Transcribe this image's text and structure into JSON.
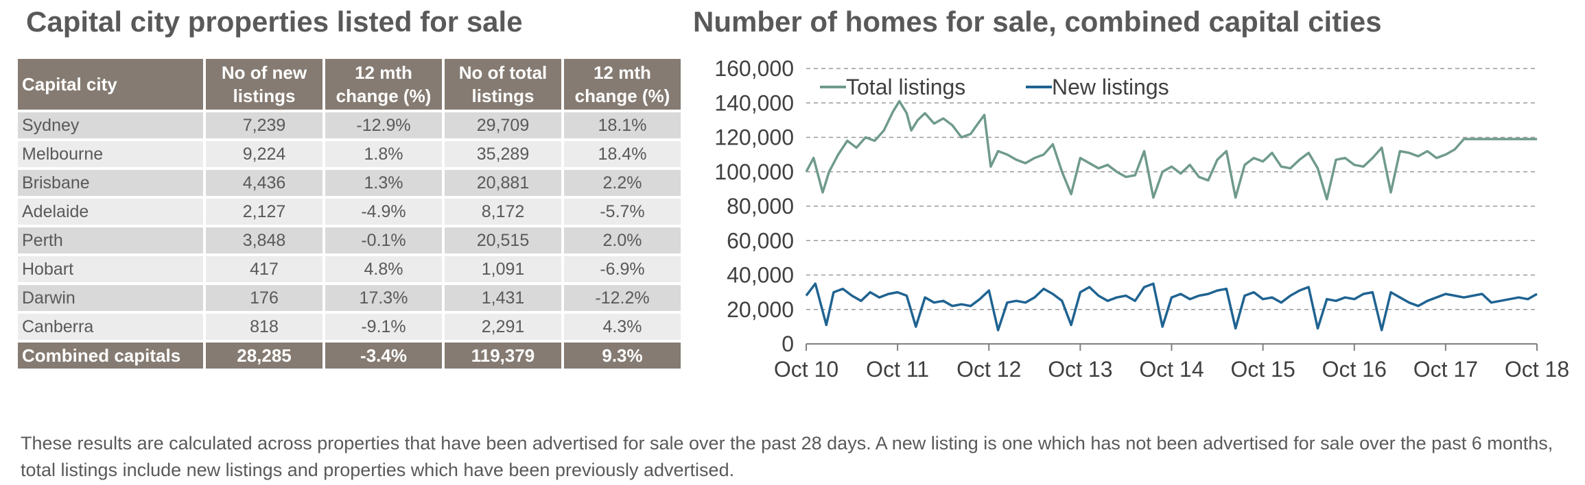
{
  "left_title": "Capital city properties listed for sale",
  "right_title": "Number of homes for sale, combined capital cities",
  "table": {
    "headers": [
      "Capital city",
      "No of new listings",
      "12 mth change (%)",
      "No of total listings",
      "12 mth change (%)"
    ],
    "rows": [
      {
        "city": "Sydney",
        "new": "7,239",
        "new_change": "-12.9%",
        "total": "29,709",
        "total_change": "18.1%"
      },
      {
        "city": "Melbourne",
        "new": "9,224",
        "new_change": "1.8%",
        "total": "35,289",
        "total_change": "18.4%"
      },
      {
        "city": "Brisbane",
        "new": "4,436",
        "new_change": "1.3%",
        "total": "20,881",
        "total_change": "2.2%"
      },
      {
        "city": "Adelaide",
        "new": "2,127",
        "new_change": "-4.9%",
        "total": "8,172",
        "total_change": "-5.7%"
      },
      {
        "city": "Perth",
        "new": "3,848",
        "new_change": "-0.1%",
        "total": "20,515",
        "total_change": "2.0%"
      },
      {
        "city": "Hobart",
        "new": "417",
        "new_change": "4.8%",
        "total": "1,091",
        "total_change": "-6.9%"
      },
      {
        "city": "Darwin",
        "new": "176",
        "new_change": "17.3%",
        "total": "1,431",
        "total_change": "-12.2%"
      },
      {
        "city": "Canberra",
        "new": "818",
        "new_change": "-9.1%",
        "total": "2,291",
        "total_change": "4.3%"
      }
    ],
    "total_row": {
      "city": "Combined capitals",
      "new": "28,285",
      "new_change": "-3.4%",
      "total": "119,379",
      "total_change": "9.3%"
    }
  },
  "chart_data": {
    "type": "line",
    "title": "Number of homes for sale, combined capital cities",
    "x_tick_labels": [
      "Oct 10",
      "Oct 11",
      "Oct 12",
      "Oct 13",
      "Oct 14",
      "Oct 15",
      "Oct 16",
      "Oct 17",
      "Oct 18"
    ],
    "y_tick_labels": [
      "0",
      "20,000",
      "40,000",
      "60,000",
      "80,000",
      "100,000",
      "120,000",
      "140,000",
      "160,000"
    ],
    "ylim": [
      0,
      160000
    ],
    "xlim": [
      0,
      8
    ],
    "grid": "horizontal dashed",
    "legend_position": "top-left",
    "series": [
      {
        "name": "Total listings",
        "color": "#6f9a8d",
        "x": [
          0,
          0.08,
          0.18,
          0.25,
          0.35,
          0.45,
          0.55,
          0.65,
          0.75,
          0.85,
          0.95,
          1.02,
          1.1,
          1.15,
          1.22,
          1.3,
          1.4,
          1.5,
          1.6,
          1.7,
          1.8,
          1.88,
          1.95,
          2.02,
          2.1,
          2.2,
          2.3,
          2.4,
          2.5,
          2.6,
          2.7,
          2.8,
          2.9,
          3.0,
          3.1,
          3.2,
          3.3,
          3.4,
          3.5,
          3.6,
          3.7,
          3.8,
          3.9,
          4.0,
          4.1,
          4.2,
          4.3,
          4.4,
          4.5,
          4.6,
          4.7,
          4.8,
          4.9,
          5.0,
          5.1,
          5.2,
          5.3,
          5.4,
          5.5,
          5.6,
          5.7,
          5.8,
          5.9,
          6.0,
          6.1,
          6.2,
          6.3,
          6.4,
          6.5,
          6.6,
          6.7,
          6.8,
          6.9,
          7.0,
          7.1,
          7.2,
          7.3,
          7.4,
          7.5,
          7.6,
          7.7,
          7.8,
          7.9,
          8.0
        ],
        "values": [
          100000,
          108000,
          88000,
          100000,
          110000,
          118000,
          114000,
          120000,
          118000,
          124000,
          135000,
          141000,
          134000,
          124000,
          130000,
          134000,
          128000,
          131000,
          127000,
          120000,
          122000,
          128000,
          133000,
          103000,
          112000,
          110000,
          107000,
          105000,
          108000,
          110000,
          116000,
          100000,
          87000,
          108000,
          105000,
          102000,
          104000,
          100000,
          97000,
          98000,
          112000,
          85000,
          100000,
          103000,
          99000,
          104000,
          97000,
          95000,
          107000,
          112000,
          85000,
          104000,
          108000,
          106000,
          111000,
          103000,
          102000,
          107000,
          111000,
          102000,
          84000,
          107000,
          108000,
          104000,
          103000,
          108000,
          114000,
          88000,
          112000,
          111000,
          109000,
          112000,
          108000,
          110000,
          113000,
          119000,
          119000,
          119000,
          119000,
          119000,
          119000,
          119000,
          119000,
          119000
        ],
        "note": "approximate trace"
      },
      {
        "name": "New listings",
        "color": "#1f6391",
        "x": [
          0,
          0.1,
          0.22,
          0.3,
          0.4,
          0.5,
          0.6,
          0.7,
          0.8,
          0.9,
          1.0,
          1.1,
          1.2,
          1.3,
          1.4,
          1.5,
          1.6,
          1.7,
          1.8,
          1.9,
          2.0,
          2.1,
          2.2,
          2.3,
          2.4,
          2.5,
          2.6,
          2.7,
          2.8,
          2.9,
          3.0,
          3.1,
          3.2,
          3.3,
          3.4,
          3.5,
          3.6,
          3.7,
          3.8,
          3.9,
          4.0,
          4.1,
          4.2,
          4.3,
          4.4,
          4.5,
          4.6,
          4.7,
          4.8,
          4.9,
          5.0,
          5.1,
          5.2,
          5.3,
          5.4,
          5.5,
          5.6,
          5.7,
          5.8,
          5.9,
          6.0,
          6.1,
          6.2,
          6.3,
          6.4,
          6.5,
          6.6,
          6.7,
          6.8,
          6.9,
          7.0,
          7.1,
          7.2,
          7.3,
          7.4,
          7.5,
          7.6,
          7.7,
          7.8,
          7.9,
          8.0
        ],
        "values": [
          28000,
          35000,
          11000,
          30000,
          32000,
          28000,
          25000,
          30000,
          27000,
          29000,
          30000,
          28000,
          10000,
          27000,
          24000,
          25000,
          22000,
          23000,
          22000,
          26000,
          31000,
          8000,
          24000,
          25000,
          24000,
          27000,
          32000,
          29000,
          25000,
          11000,
          30000,
          33000,
          28000,
          25000,
          27000,
          28000,
          25000,
          33000,
          35000,
          10000,
          27000,
          29000,
          26000,
          28000,
          29000,
          31000,
          32000,
          9000,
          28000,
          30000,
          26000,
          27000,
          24000,
          28000,
          31000,
          33000,
          9000,
          26000,
          25000,
          27000,
          26000,
          29000,
          30000,
          8000,
          30000,
          27000,
          24000,
          22000,
          25000,
          27000,
          29000,
          28000,
          27000,
          28000,
          29000,
          24000,
          25000,
          26000,
          27000,
          26000,
          29000
        ],
        "note": "approximate trace"
      }
    ]
  },
  "footnote": "These results are calculated across properties that have been advertised for sale over the past 28 days.  A new listing is one which has not been advertised for sale over the past 6 months, total listings include new listings and properties which have been previously advertised."
}
